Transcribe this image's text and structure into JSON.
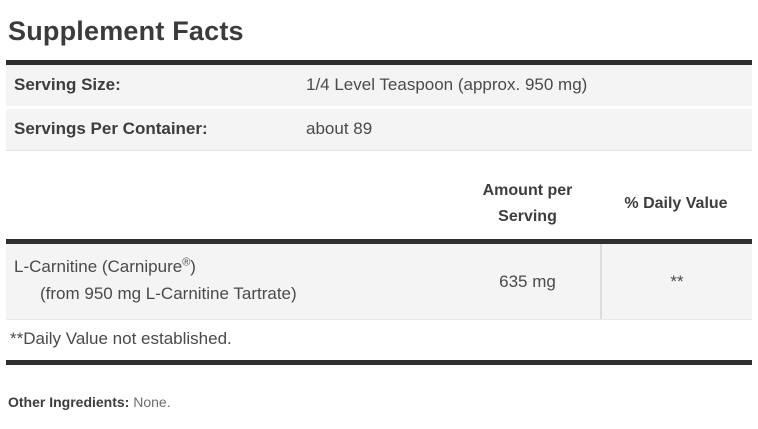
{
  "title": "Supplement Facts",
  "serving_info": {
    "serving_size_label": "Serving Size:",
    "serving_size_value": "1/4 Level Teaspoon (approx. 950 mg)",
    "servings_per_container_label": "Servings Per Container:",
    "servings_per_container_value": "about 89"
  },
  "nutrient_table": {
    "header": {
      "amount_line1": "Amount per",
      "amount_line2": "Serving",
      "daily_value": "% Daily Value"
    },
    "row": {
      "name_main": "L-Carnitine (Carnipure",
      "name_trademark": "®",
      "name_close_paren": ")",
      "name_sub": "(from 950 mg L-Carnitine Tartrate)",
      "amount": "635 mg",
      "daily_value": "**"
    },
    "footnote": "**Daily Value not established."
  },
  "other_ingredients": {
    "label": "Other Ingredients:",
    "value": "None."
  },
  "colors": {
    "heavy_rule": "#2f2f2f",
    "row_background": "#f4f4f4",
    "column_divider": "#dcdcdc",
    "text_primary": "#3d3d3d",
    "text_secondary": "#4a4a4a",
    "text_muted": "#6e6e6e"
  }
}
